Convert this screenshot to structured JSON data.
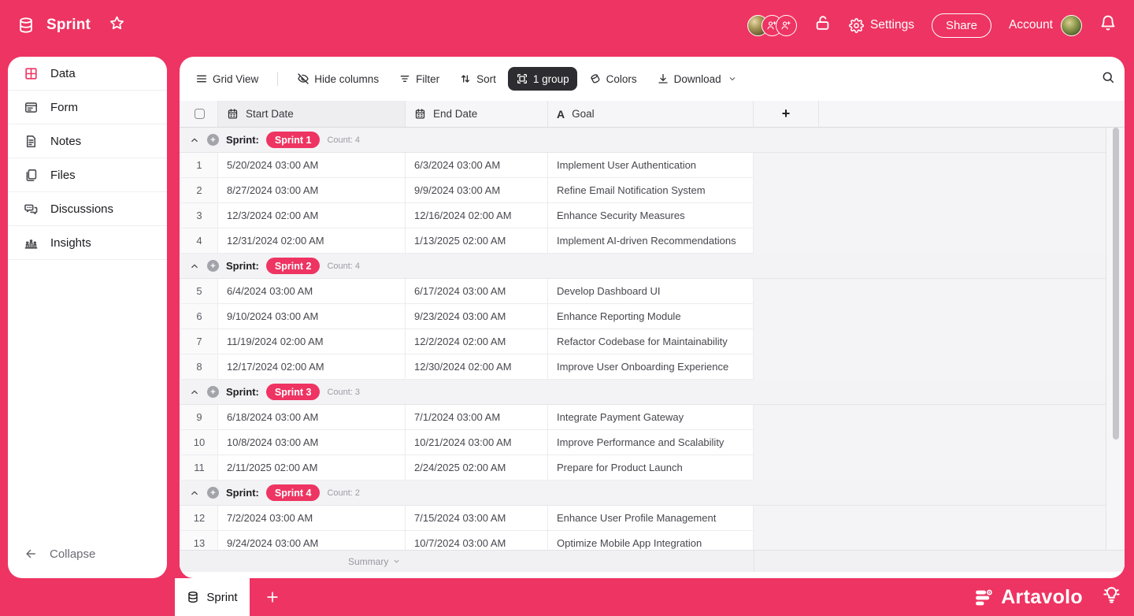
{
  "colors": {
    "brand": "#EE3462",
    "toolbar_active_bg": "#2D2D31",
    "grid_bg": "#F4F4F6",
    "group_row_bg": "#F3F3F6"
  },
  "topbar": {
    "title": "Sprint",
    "right": {
      "settings_label": "Settings",
      "share_label": "Share",
      "account_label": "Account"
    }
  },
  "sidebar": {
    "items": [
      {
        "label": "Data",
        "icon": "data-grid-icon",
        "active": true
      },
      {
        "label": "Form",
        "icon": "form-icon",
        "active": false
      },
      {
        "label": "Notes",
        "icon": "notes-icon",
        "active": false
      },
      {
        "label": "Files",
        "icon": "files-icon",
        "active": false
      },
      {
        "label": "Discussions",
        "icon": "discussions-icon",
        "active": false
      },
      {
        "label": "Insights",
        "icon": "insights-icon",
        "active": false
      }
    ],
    "collapse_label": "Collapse"
  },
  "toolbar": {
    "buttons": [
      {
        "label": "Grid View",
        "icon": "menu-icon",
        "active": false,
        "divider_after": true
      },
      {
        "label": "Hide columns",
        "icon": "eye-off-icon",
        "active": false
      },
      {
        "label": "Filter",
        "icon": "filter-icon",
        "active": false
      },
      {
        "label": "Sort",
        "icon": "sort-icon",
        "active": false
      },
      {
        "label": "1 group",
        "icon": "group-icon",
        "active": true
      },
      {
        "label": "Colors",
        "icon": "colors-icon",
        "active": false
      },
      {
        "label": "Download",
        "icon": "download-icon",
        "active": false,
        "chevron": true
      }
    ]
  },
  "table": {
    "columns": [
      {
        "label": "Start Date",
        "icon": "calendar-icon"
      },
      {
        "label": "End Date",
        "icon": "calendar-icon"
      },
      {
        "label": "Goal",
        "icon": "letter-a-icon"
      }
    ],
    "add_column_label": "+",
    "group_field_label": "Sprint:",
    "groups": [
      {
        "value": "Sprint 1",
        "count_label": "Count: 4",
        "rows": [
          {
            "num": "1",
            "start": "5/20/2024 03:00 AM",
            "end": "6/3/2024 03:00 AM",
            "goal": "Implement User Authentication"
          },
          {
            "num": "2",
            "start": "8/27/2024 03:00 AM",
            "end": "9/9/2024 03:00 AM",
            "goal": "Refine Email Notification System"
          },
          {
            "num": "3",
            "start": "12/3/2024 02:00 AM",
            "end": "12/16/2024 02:00 AM",
            "goal": "Enhance Security Measures"
          },
          {
            "num": "4",
            "start": "12/31/2024 02:00 AM",
            "end": "1/13/2025 02:00 AM",
            "goal": "Implement AI-driven Recommendations"
          }
        ]
      },
      {
        "value": "Sprint 2",
        "count_label": "Count: 4",
        "rows": [
          {
            "num": "5",
            "start": "6/4/2024 03:00 AM",
            "end": "6/17/2024 03:00 AM",
            "goal": "Develop Dashboard UI"
          },
          {
            "num": "6",
            "start": "9/10/2024 03:00 AM",
            "end": "9/23/2024 03:00 AM",
            "goal": "Enhance Reporting Module"
          },
          {
            "num": "7",
            "start": "11/19/2024 02:00 AM",
            "end": "12/2/2024 02:00 AM",
            "goal": "Refactor Codebase for Maintainability"
          },
          {
            "num": "8",
            "start": "12/17/2024 02:00 AM",
            "end": "12/30/2024 02:00 AM",
            "goal": "Improve User Onboarding Experience"
          }
        ]
      },
      {
        "value": "Sprint 3",
        "count_label": "Count: 3",
        "rows": [
          {
            "num": "9",
            "start": "6/18/2024 03:00 AM",
            "end": "7/1/2024 03:00 AM",
            "goal": "Integrate Payment Gateway"
          },
          {
            "num": "10",
            "start": "10/8/2024 03:00 AM",
            "end": "10/21/2024 03:00 AM",
            "goal": "Improve Performance and Scalability"
          },
          {
            "num": "11",
            "start": "2/11/2025 02:00 AM",
            "end": "2/24/2025 02:00 AM",
            "goal": "Prepare for Product Launch"
          }
        ]
      },
      {
        "value": "Sprint 4",
        "count_label": "Count: 2",
        "rows": [
          {
            "num": "12",
            "start": "7/2/2024 03:00 AM",
            "end": "7/15/2024 03:00 AM",
            "goal": "Enhance User Profile Management"
          },
          {
            "num": "13",
            "start": "9/24/2024 03:00 AM",
            "end": "10/7/2024 03:00 AM",
            "goal": "Optimize Mobile App Integration"
          }
        ]
      }
    ],
    "summary_label": "Summary"
  },
  "footer": {
    "tab_label": "Sprint",
    "add_tab_label": "+",
    "brand": "Artavolo"
  }
}
